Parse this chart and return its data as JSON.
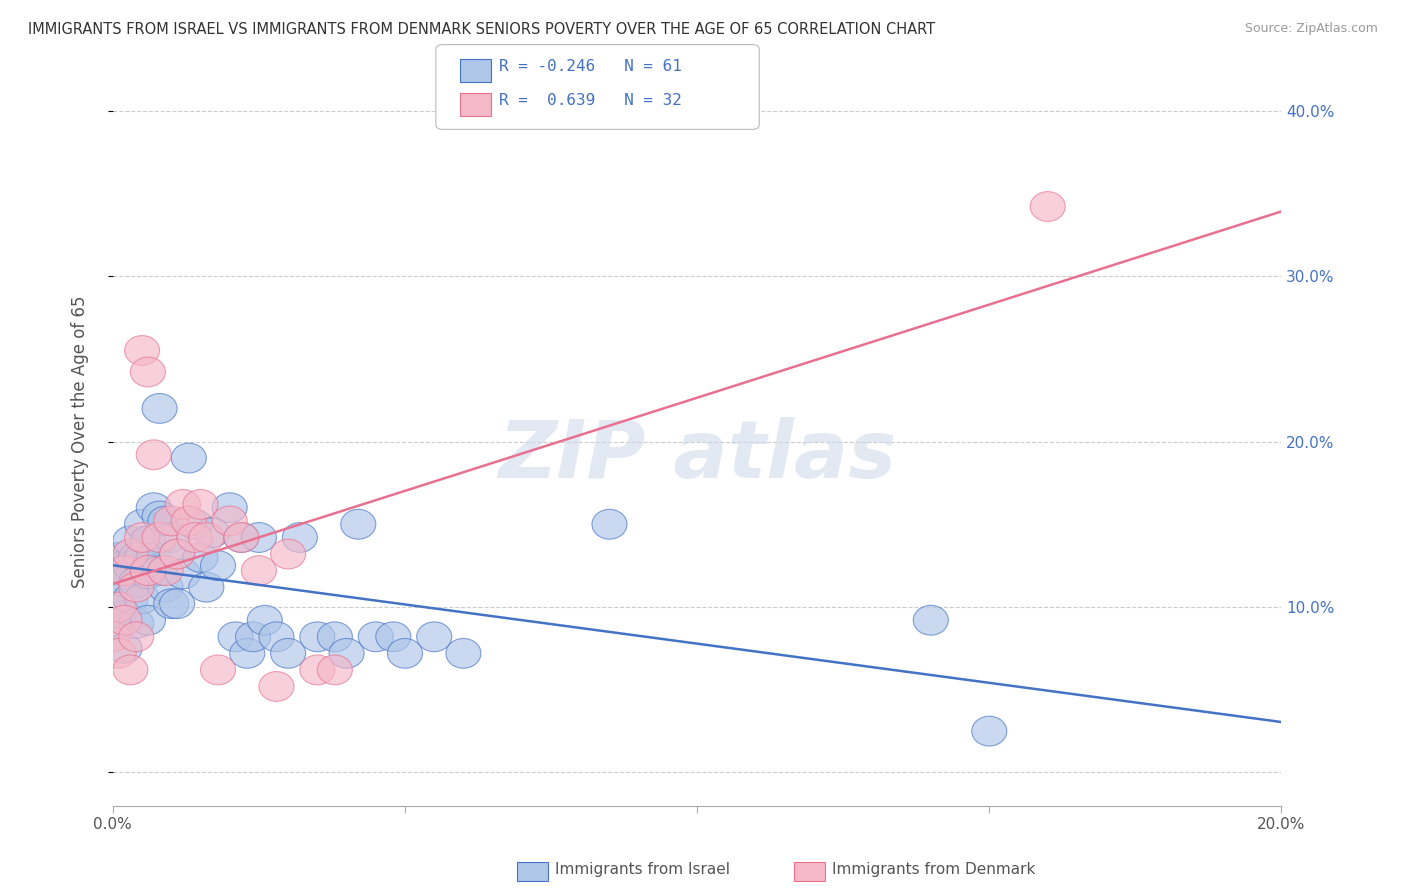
{
  "title": "IMMIGRANTS FROM ISRAEL VS IMMIGRANTS FROM DENMARK SENIORS POVERTY OVER THE AGE OF 65 CORRELATION CHART",
  "source": "Source: ZipAtlas.com",
  "ylabel": "Seniors Poverty Over the Age of 65",
  "xlim": [
    0.0,
    0.2
  ],
  "ylim": [
    -0.02,
    0.42
  ],
  "yticks": [
    0.0,
    0.1,
    0.2,
    0.3,
    0.4
  ],
  "xticks": [
    0.0,
    0.05,
    0.1,
    0.15,
    0.2
  ],
  "xtick_labels": [
    "0.0%",
    "",
    "",
    "",
    "20.0%"
  ],
  "ytick_labels": [
    "",
    "10.0%",
    "20.0%",
    "30.0%",
    "40.0%"
  ],
  "legend_label1": "Immigrants from Israel",
  "legend_label2": "Immigrants from Denmark",
  "R1": -0.246,
  "N1": 61,
  "R2": 0.639,
  "N2": 32,
  "color1": "#aec6e8",
  "color2": "#f4b8c8",
  "line_color1": "#4472c4",
  "line_color2": "#e87090",
  "scatter1_x": [
    0.0,
    0.0,
    0.001,
    0.001,
    0.001,
    0.002,
    0.002,
    0.002,
    0.002,
    0.003,
    0.003,
    0.003,
    0.004,
    0.004,
    0.004,
    0.005,
    0.005,
    0.005,
    0.006,
    0.006,
    0.006,
    0.007,
    0.007,
    0.008,
    0.008,
    0.008,
    0.009,
    0.009,
    0.01,
    0.01,
    0.011,
    0.011,
    0.012,
    0.013,
    0.014,
    0.015,
    0.016,
    0.017,
    0.018,
    0.02,
    0.021,
    0.022,
    0.023,
    0.024,
    0.025,
    0.026,
    0.028,
    0.03,
    0.032,
    0.035,
    0.038,
    0.04,
    0.042,
    0.045,
    0.048,
    0.05,
    0.055,
    0.06,
    0.085,
    0.14,
    0.15
  ],
  "scatter1_y": [
    0.125,
    0.11,
    0.13,
    0.1,
    0.09,
    0.125,
    0.115,
    0.095,
    0.075,
    0.14,
    0.125,
    0.105,
    0.13,
    0.115,
    0.09,
    0.15,
    0.13,
    0.105,
    0.14,
    0.12,
    0.092,
    0.16,
    0.13,
    0.22,
    0.155,
    0.122,
    0.152,
    0.112,
    0.142,
    0.102,
    0.132,
    0.102,
    0.12,
    0.19,
    0.15,
    0.13,
    0.112,
    0.145,
    0.125,
    0.16,
    0.082,
    0.142,
    0.072,
    0.082,
    0.142,
    0.092,
    0.082,
    0.072,
    0.142,
    0.082,
    0.082,
    0.072,
    0.15,
    0.082,
    0.082,
    0.072,
    0.082,
    0.072,
    0.15,
    0.092,
    0.025
  ],
  "scatter2_x": [
    0.0,
    0.001,
    0.001,
    0.002,
    0.002,
    0.003,
    0.003,
    0.004,
    0.004,
    0.005,
    0.005,
    0.006,
    0.006,
    0.007,
    0.008,
    0.009,
    0.01,
    0.011,
    0.012,
    0.013,
    0.014,
    0.015,
    0.016,
    0.018,
    0.02,
    0.022,
    0.025,
    0.028,
    0.03,
    0.035,
    0.038,
    0.16
  ],
  "scatter2_y": [
    0.082,
    0.1,
    0.072,
    0.122,
    0.092,
    0.132,
    0.062,
    0.112,
    0.082,
    0.255,
    0.142,
    0.242,
    0.122,
    0.192,
    0.142,
    0.122,
    0.152,
    0.132,
    0.162,
    0.152,
    0.142,
    0.162,
    0.142,
    0.062,
    0.152,
    0.142,
    0.122,
    0.052,
    0.132,
    0.062,
    0.062,
    0.342
  ],
  "background_color": "#ffffff",
  "grid_color": "#cccccc"
}
